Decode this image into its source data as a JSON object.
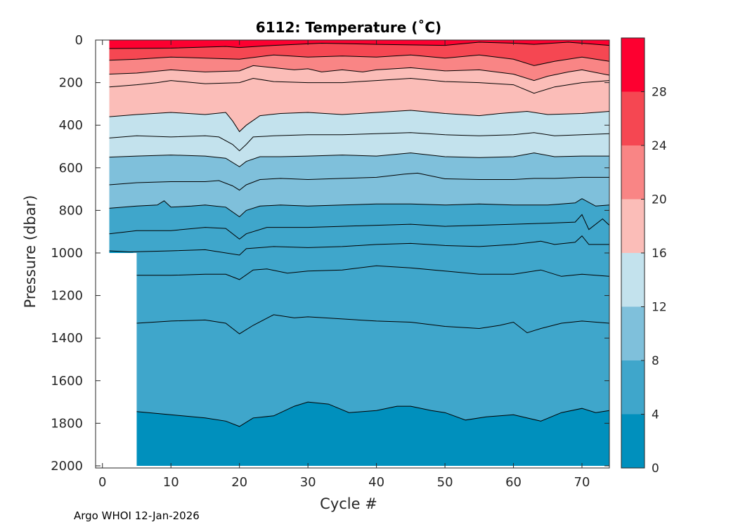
{
  "chart_data": {
    "type": "heatmap",
    "title": "6112:  Temperature (˚C)",
    "xlabel": "Cycle #",
    "ylabel": "Pressure (dbar)",
    "xlim": [
      -1,
      74
    ],
    "ylim": [
      0,
      2010
    ],
    "x_ticks": [
      0,
      10,
      20,
      30,
      40,
      50,
      60,
      70
    ],
    "y_ticks": [
      0,
      200,
      400,
      600,
      800,
      1000,
      1200,
      1400,
      1600,
      1800,
      2000
    ],
    "colorbar": {
      "range": [
        0,
        32
      ],
      "ticks": [
        0,
        4,
        8,
        12,
        16,
        20,
        24,
        28
      ],
      "bands": [
        {
          "from": 0,
          "to": 4,
          "color": "#0090bd"
        },
        {
          "from": 4,
          "to": 8,
          "color": "#3fa6cb"
        },
        {
          "from": 8,
          "to": 12,
          "color": "#7fc0db"
        },
        {
          "from": 12,
          "to": 16,
          "color": "#c3e2ed"
        },
        {
          "from": 16,
          "to": 20,
          "color": "#fbbdb8"
        },
        {
          "from": 20,
          "to": 24,
          "color": "#f98585"
        },
        {
          "from": 24,
          "to": 28,
          "color": "#f54752"
        },
        {
          "from": 28,
          "to": 32,
          "color": "#fd0030"
        }
      ]
    },
    "coverage": {
      "cycles_1_to_4_max_pressure": 1000,
      "cycles_5_to_74_max_pressure": 2000,
      "first_cycle": 1,
      "last_cycle": 74
    },
    "isotherms": [
      {
        "level": 26,
        "color": "#fd0030",
        "pressure_by_cycle": [
          [
            1,
            40
          ],
          [
            10,
            38
          ],
          [
            18,
            30
          ],
          [
            20,
            35
          ],
          [
            25,
            25
          ],
          [
            32,
            15
          ],
          [
            40,
            20
          ],
          [
            50,
            25
          ],
          [
            55,
            10
          ],
          [
            60,
            15
          ],
          [
            63,
            20
          ],
          [
            68,
            10
          ],
          [
            74,
            25
          ]
        ]
      },
      {
        "level": 24,
        "color": "#f54752",
        "pressure_by_cycle": [
          [
            1,
            95
          ],
          [
            5,
            90
          ],
          [
            10,
            80
          ],
          [
            15,
            85
          ],
          [
            20,
            90
          ],
          [
            25,
            70
          ],
          [
            30,
            80
          ],
          [
            35,
            75
          ],
          [
            40,
            80
          ],
          [
            45,
            70
          ],
          [
            50,
            85
          ],
          [
            55,
            70
          ],
          [
            60,
            90
          ],
          [
            63,
            120
          ],
          [
            66,
            100
          ],
          [
            70,
            80
          ],
          [
            74,
            100
          ]
        ]
      },
      {
        "level": 22,
        "color": "#f98585",
        "pressure_by_cycle": [
          [
            1,
            160
          ],
          [
            5,
            155
          ],
          [
            10,
            140
          ],
          [
            15,
            150
          ],
          [
            20,
            145
          ],
          [
            22,
            120
          ],
          [
            25,
            130
          ],
          [
            28,
            140
          ],
          [
            30,
            135
          ],
          [
            32,
            150
          ],
          [
            35,
            140
          ],
          [
            38,
            150
          ],
          [
            40,
            140
          ],
          [
            45,
            130
          ],
          [
            50,
            145
          ],
          [
            55,
            140
          ],
          [
            60,
            160
          ],
          [
            63,
            190
          ],
          [
            65,
            170
          ],
          [
            68,
            150
          ],
          [
            70,
            140
          ],
          [
            74,
            165
          ]
        ]
      },
      {
        "level": 20,
        "color": "#fbbdb8",
        "pressure_by_cycle": [
          [
            1,
            220
          ],
          [
            5,
            210
          ],
          [
            8,
            200
          ],
          [
            10,
            190
          ],
          [
            15,
            205
          ],
          [
            20,
            200
          ],
          [
            22,
            180
          ],
          [
            25,
            195
          ],
          [
            30,
            200
          ],
          [
            35,
            200
          ],
          [
            40,
            190
          ],
          [
            45,
            180
          ],
          [
            50,
            195
          ],
          [
            55,
            200
          ],
          [
            60,
            210
          ],
          [
            63,
            250
          ],
          [
            66,
            220
          ],
          [
            70,
            200
          ],
          [
            74,
            190
          ]
        ]
      },
      {
        "level": 18,
        "color": "#fbbdb8",
        "pressure_by_cycle": [
          [
            1,
            360
          ],
          [
            5,
            350
          ],
          [
            10,
            340
          ],
          [
            15,
            350
          ],
          [
            18,
            340
          ],
          [
            19,
            380
          ],
          [
            20,
            430
          ],
          [
            21,
            400
          ],
          [
            23,
            355
          ],
          [
            26,
            345
          ],
          [
            30,
            340
          ],
          [
            35,
            350
          ],
          [
            40,
            340
          ],
          [
            45,
            330
          ],
          [
            50,
            345
          ],
          [
            55,
            355
          ],
          [
            58,
            345
          ],
          [
            62,
            335
          ],
          [
            65,
            350
          ],
          [
            70,
            345
          ],
          [
            74,
            335
          ]
        ]
      },
      {
        "level": 16,
        "color": "#c3e2ed",
        "pressure_by_cycle": [
          [
            1,
            460
          ],
          [
            5,
            450
          ],
          [
            10,
            455
          ],
          [
            15,
            450
          ],
          [
            17,
            455
          ],
          [
            19,
            490
          ],
          [
            20,
            520
          ],
          [
            21,
            490
          ],
          [
            22,
            455
          ],
          [
            25,
            450
          ],
          [
            30,
            445
          ],
          [
            35,
            445
          ],
          [
            40,
            440
          ],
          [
            45,
            435
          ],
          [
            50,
            445
          ],
          [
            55,
            450
          ],
          [
            60,
            445
          ],
          [
            63,
            435
          ],
          [
            66,
            450
          ],
          [
            70,
            445
          ],
          [
            74,
            440
          ]
        ]
      },
      {
        "level": 14,
        "color": "#c3e2ed",
        "pressure_by_cycle": [
          [
            1,
            550
          ],
          [
            5,
            545
          ],
          [
            10,
            540
          ],
          [
            15,
            545
          ],
          [
            18,
            555
          ],
          [
            20,
            595
          ],
          [
            21,
            570
          ],
          [
            23,
            548
          ],
          [
            26,
            548
          ],
          [
            30,
            545
          ],
          [
            35,
            540
          ],
          [
            40,
            545
          ],
          [
            45,
            530
          ],
          [
            50,
            548
          ],
          [
            55,
            552
          ],
          [
            60,
            548
          ],
          [
            63,
            530
          ],
          [
            66,
            548
          ],
          [
            70,
            545
          ],
          [
            74,
            545
          ]
        ]
      },
      {
        "level": 12,
        "color": "#7fc0db",
        "pressure_by_cycle": [
          [
            1,
            680
          ],
          [
            5,
            670
          ],
          [
            10,
            665
          ],
          [
            15,
            665
          ],
          [
            17,
            660
          ],
          [
            19,
            685
          ],
          [
            20,
            705
          ],
          [
            21,
            680
          ],
          [
            23,
            655
          ],
          [
            26,
            650
          ],
          [
            30,
            655
          ],
          [
            35,
            650
          ],
          [
            40,
            645
          ],
          [
            44,
            630
          ],
          [
            46,
            625
          ],
          [
            50,
            652
          ],
          [
            55,
            655
          ],
          [
            60,
            655
          ],
          [
            63,
            650
          ],
          [
            66,
            650
          ],
          [
            70,
            645
          ],
          [
            74,
            645
          ]
        ]
      },
      {
        "level": 10,
        "color": "#7fc0db",
        "pressure_by_cycle": [
          [
            1,
            790
          ],
          [
            5,
            780
          ],
          [
            8,
            775
          ],
          [
            9,
            755
          ],
          [
            10,
            785
          ],
          [
            13,
            780
          ],
          [
            15,
            775
          ],
          [
            18,
            785
          ],
          [
            20,
            830
          ],
          [
            21,
            800
          ],
          [
            23,
            780
          ],
          [
            26,
            775
          ],
          [
            30,
            780
          ],
          [
            35,
            775
          ],
          [
            40,
            770
          ],
          [
            45,
            770
          ],
          [
            50,
            775
          ],
          [
            55,
            770
          ],
          [
            60,
            775
          ],
          [
            65,
            775
          ],
          [
            69,
            765
          ],
          [
            70,
            745
          ],
          [
            72,
            780
          ],
          [
            74,
            775
          ]
        ]
      },
      {
        "level": 8,
        "color": "#3fa6cb",
        "pressure_by_cycle": [
          [
            1,
            910
          ],
          [
            5,
            895
          ],
          [
            10,
            895
          ],
          [
            15,
            880
          ],
          [
            18,
            885
          ],
          [
            20,
            935
          ],
          [
            21,
            910
          ],
          [
            24,
            880
          ],
          [
            30,
            880
          ],
          [
            35,
            875
          ],
          [
            40,
            870
          ],
          [
            45,
            865
          ],
          [
            50,
            875
          ],
          [
            55,
            870
          ],
          [
            60,
            865
          ],
          [
            65,
            860
          ],
          [
            69,
            855
          ],
          [
            70,
            820
          ],
          [
            71,
            890
          ],
          [
            73,
            840
          ],
          [
            74,
            870
          ]
        ]
      },
      {
        "level": 6,
        "color": "#3fa6cb",
        "pressure_by_cycle": [
          [
            1,
            990
          ],
          [
            4,
            995
          ],
          [
            10,
            990
          ],
          [
            15,
            985
          ],
          [
            20,
            1010
          ],
          [
            21,
            980
          ],
          [
            25,
            970
          ],
          [
            30,
            975
          ],
          [
            35,
            970
          ],
          [
            40,
            960
          ],
          [
            45,
            955
          ],
          [
            50,
            965
          ],
          [
            55,
            970
          ],
          [
            60,
            960
          ],
          [
            64,
            945
          ],
          [
            66,
            960
          ],
          [
            69,
            950
          ],
          [
            70,
            920
          ],
          [
            71,
            960
          ],
          [
            74,
            960
          ]
        ]
      },
      {
        "level": 5,
        "color": "#3fa6cb",
        "pressure_by_cycle": [
          [
            5,
            1105
          ],
          [
            10,
            1105
          ],
          [
            15,
            1100
          ],
          [
            18,
            1100
          ],
          [
            20,
            1125
          ],
          [
            22,
            1080
          ],
          [
            24,
            1075
          ],
          [
            27,
            1095
          ],
          [
            30,
            1085
          ],
          [
            35,
            1080
          ],
          [
            40,
            1060
          ],
          [
            45,
            1070
          ],
          [
            50,
            1085
          ],
          [
            55,
            1100
          ],
          [
            60,
            1100
          ],
          [
            64,
            1080
          ],
          [
            67,
            1110
          ],
          [
            70,
            1100
          ],
          [
            74,
            1110
          ]
        ]
      },
      {
        "level": 4.5,
        "color": "#3fa6cb",
        "pressure_by_cycle": [
          [
            5,
            1330
          ],
          [
            10,
            1320
          ],
          [
            15,
            1315
          ],
          [
            18,
            1330
          ],
          [
            20,
            1380
          ],
          [
            22,
            1340
          ],
          [
            25,
            1290
          ],
          [
            28,
            1305
          ],
          [
            30,
            1300
          ],
          [
            35,
            1310
          ],
          [
            40,
            1320
          ],
          [
            45,
            1325
          ],
          [
            50,
            1345
          ],
          [
            55,
            1355
          ],
          [
            58,
            1340
          ],
          [
            60,
            1325
          ],
          [
            62,
            1375
          ],
          [
            64,
            1355
          ],
          [
            67,
            1330
          ],
          [
            70,
            1320
          ],
          [
            74,
            1330
          ]
        ]
      },
      {
        "level": 4,
        "color": "#3fa6cb",
        "pressure_by_cycle": [
          [
            5,
            1745
          ],
          [
            10,
            1760
          ],
          [
            15,
            1775
          ],
          [
            18,
            1790
          ],
          [
            20,
            1815
          ],
          [
            22,
            1775
          ],
          [
            25,
            1765
          ],
          [
            28,
            1720
          ],
          [
            30,
            1700
          ],
          [
            33,
            1710
          ],
          [
            36,
            1750
          ],
          [
            40,
            1740
          ],
          [
            43,
            1720
          ],
          [
            45,
            1720
          ],
          [
            48,
            1740
          ],
          [
            50,
            1750
          ],
          [
            53,
            1785
          ],
          [
            56,
            1770
          ],
          [
            60,
            1760
          ],
          [
            64,
            1790
          ],
          [
            67,
            1750
          ],
          [
            70,
            1730
          ],
          [
            72,
            1750
          ],
          [
            74,
            1740
          ]
        ]
      }
    ],
    "footer": "Argo WHOI 12-Jan-2026"
  }
}
